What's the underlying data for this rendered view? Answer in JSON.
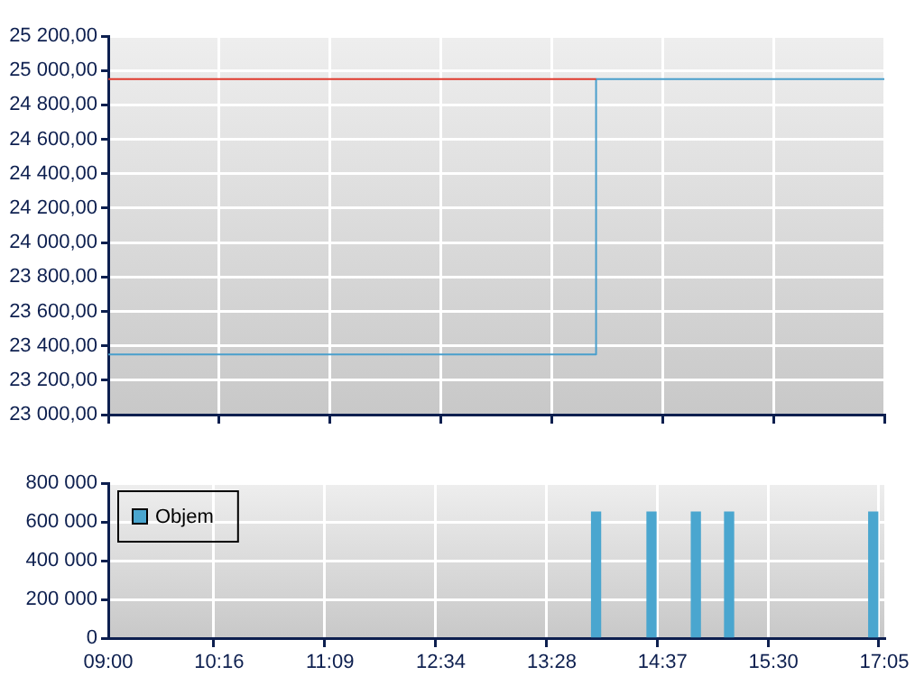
{
  "chart_data": [
    {
      "type": "step",
      "categories": [
        null,
        null,
        null,
        null,
        null,
        null,
        null,
        null,
        null,
        null,
        null,
        null,
        null,
        null,
        null,
        null,
        null,
        null,
        null,
        null,
        null,
        null,
        null,
        null,
        null,
        null,
        null,
        null,
        null,
        null,
        null,
        null,
        null,
        null,
        null,
        null,
        null,
        null,
        null,
        null,
        null,
        null,
        null,
        null,
        null,
        null,
        null,
        null,
        null,
        null,
        null,
        null,
        null,
        null,
        null,
        null,
        null,
        null,
        null,
        null,
        null,
        null,
        null,
        null,
        null,
        null,
        null,
        null,
        null,
        null,
        null
      ],
      "tick_labels": "y",
      "ylim": [
        23000,
        25200
      ],
      "yticks": [
        {
          "value": 23000,
          "label": "23 000,00"
        },
        {
          "value": 23200,
          "label": "23 200,00"
        },
        {
          "value": 23400,
          "label": "23 400,00"
        },
        {
          "value": 23600,
          "label": "23 600,00"
        },
        {
          "value": 23800,
          "label": "23 800,00"
        },
        {
          "value": 24000,
          "label": "24 000,00"
        },
        {
          "value": 24200,
          "label": "24 200,00"
        },
        {
          "value": 24400,
          "label": "24 400,00"
        },
        {
          "value": 24600,
          "label": "24 600,00"
        },
        {
          "value": 24800,
          "label": "24 800,00"
        },
        {
          "value": 25000,
          "label": "25 000,00"
        },
        {
          "value": 25200,
          "label": "25 200,00"
        }
      ],
      "grid": true,
      "series": [
        {
          "type": "line",
          "color": "#e03a2e",
          "values": [
            24950,
            24950,
            24950,
            24950,
            24950,
            24950,
            24950,
            24950,
            24950,
            24950,
            24950,
            24950,
            24950,
            24950,
            24950,
            24950,
            24950,
            24950,
            24950,
            24950,
            24950,
            24950,
            24950,
            24950,
            24950,
            24950,
            24950,
            24950,
            24950,
            24950,
            24950,
            24950,
            24950,
            24950,
            24950,
            24950,
            24950,
            24950,
            24950,
            24950,
            24950,
            24950,
            24950,
            24950,
            24950,
            null,
            null,
            null,
            null,
            null,
            null,
            null,
            null,
            null,
            null,
            null,
            null,
            null,
            null,
            null,
            null,
            null,
            null,
            null,
            null,
            null,
            null,
            null,
            null,
            null,
            null
          ]
        },
        {
          "color": "#4a9fcc",
          "values": [
            23350,
            23350,
            23350,
            23350,
            23350,
            23350,
            23350,
            23350,
            23350,
            23350,
            23350,
            23350,
            23350,
            23350,
            23350,
            23350,
            23350,
            23350,
            23350,
            23350,
            23350,
            23350,
            23350,
            23350,
            23350,
            23350,
            23350,
            23350,
            23350,
            23350,
            23350,
            23350,
            23350,
            23350,
            23350,
            23350,
            23350,
            23350,
            23350,
            23350,
            23350,
            23350,
            23350,
            23350,
            24950,
            24950,
            24950,
            24950,
            24950,
            24950,
            24950,
            24950,
            24950,
            24950,
            24950,
            24950,
            24950,
            24950,
            24950,
            24950,
            24950,
            24950,
            24950,
            24950,
            24950,
            24950,
            24950,
            24950,
            24950,
            24950,
            24950
          ]
        }
      ]
    },
    {
      "type": "bar",
      "categories": [
        "09:00",
        null,
        null,
        null,
        null,
        null,
        null,
        null,
        null,
        null,
        "10:16",
        null,
        null,
        null,
        null,
        null,
        null,
        null,
        null,
        null,
        "11:09",
        null,
        null,
        null,
        null,
        null,
        null,
        null,
        null,
        null,
        "12:34",
        null,
        null,
        null,
        null,
        null,
        null,
        null,
        null,
        null,
        "13:28",
        null,
        null,
        null,
        null,
        null,
        null,
        null,
        null,
        null,
        "14:37",
        null,
        null,
        null,
        null,
        null,
        null,
        null,
        null,
        null,
        "15:30",
        null,
        null,
        null,
        null,
        null,
        null,
        null,
        null,
        null,
        "17:05"
      ],
      "ylim": [
        0,
        800000
      ],
      "yticks": [
        {
          "value": 0,
          "label": "0"
        },
        {
          "value": 200000,
          "label": "200 000"
        },
        {
          "value": 400000,
          "label": "400 000"
        },
        {
          "value": 600000,
          "label": "600 000"
        },
        {
          "value": 800000,
          "label": "800 000"
        }
      ],
      "grid": true,
      "legend": "top left",
      "series": [
        {
          "name": "Objem",
          "color": "#4aa6cf",
          "values": [
            null,
            null,
            null,
            null,
            null,
            null,
            null,
            null,
            null,
            null,
            null,
            null,
            null,
            null,
            null,
            null,
            null,
            null,
            null,
            null,
            null,
            null,
            null,
            null,
            null,
            null,
            null,
            null,
            null,
            null,
            null,
            null,
            null,
            null,
            null,
            null,
            null,
            null,
            null,
            null,
            null,
            null,
            null,
            null,
            650000,
            null,
            null,
            null,
            null,
            650000,
            null,
            null,
            null,
            650000,
            null,
            null,
            650000,
            null,
            null,
            null,
            null,
            null,
            null,
            null,
            null,
            null,
            null,
            null,
            null,
            650000,
            null
          ]
        }
      ]
    }
  ]
}
